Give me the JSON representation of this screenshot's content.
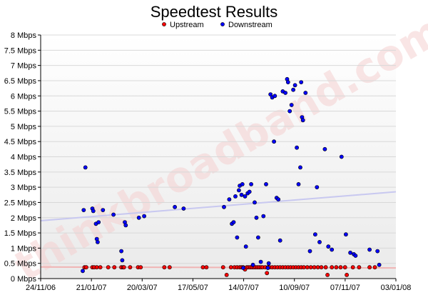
{
  "chart_data": {
    "type": "scatter",
    "title": "Speedtest Results",
    "xlabel": "",
    "ylabel": "",
    "watermark": "thinkbroadband.com",
    "legend_position": "top-center",
    "grid": true,
    "x_ticks": [
      "24/11/06",
      "21/01/07",
      "20/03/07",
      "17/05/07",
      "14/07/07",
      "10/09/07",
      "07/11/07",
      "03/01/08"
    ],
    "x_range": [
      "2006-11-24",
      "2008-01-03"
    ],
    "y_ticks": [
      "0 Mbps",
      "0.5 Mbps",
      "1 Mbps",
      "1.5 Mbps",
      "2 Mbps",
      "2.5 Mbps",
      "3 Mbps",
      "3.5 Mbps",
      "4 Mbps",
      "4.5 Mbps",
      "5 Mbps",
      "5.5 Mbps",
      "6 Mbps",
      "6.5 Mbps",
      "7 Mbps",
      "7.5 Mbps",
      "8 Mbps"
    ],
    "ylim": [
      0,
      8
    ],
    "trend_lines": [
      {
        "series": "Downstream",
        "color": "#c8c8f0",
        "start": [
          "2006-11-24",
          1.9
        ],
        "end": [
          "2008-01-03",
          2.85
        ]
      },
      {
        "series": "Upstream",
        "color": "#f0b4b4",
        "start": [
          "2006-11-24",
          0.38
        ],
        "end": [
          "2008-01-03",
          0.35
        ]
      }
    ],
    "series": [
      {
        "name": "Upstream",
        "color": "#ff0000",
        "points": [
          [
            "2007-01-13",
            0.37
          ],
          [
            "2007-01-15",
            0.37
          ],
          [
            "2007-01-22",
            0.37
          ],
          [
            "2007-01-24",
            0.37
          ],
          [
            "2007-01-27",
            0.37
          ],
          [
            "2007-01-31",
            0.37
          ],
          [
            "2007-02-09",
            0.37
          ],
          [
            "2007-02-16",
            0.37
          ],
          [
            "2007-02-24",
            0.37
          ],
          [
            "2007-02-26",
            0.37
          ],
          [
            "2007-02-27",
            0.37
          ],
          [
            "2007-03-06",
            0.37
          ],
          [
            "2007-03-15",
            0.37
          ],
          [
            "2007-03-18",
            0.37
          ],
          [
            "2007-04-14",
            0.37
          ],
          [
            "2007-04-20",
            0.37
          ],
          [
            "2007-05-28",
            0.37
          ],
          [
            "2007-06-01",
            0.37
          ],
          [
            "2007-06-20",
            0.37
          ],
          [
            "2007-06-24",
            0.12
          ],
          [
            "2007-06-29",
            0.37
          ],
          [
            "2007-07-03",
            0.37
          ],
          [
            "2007-07-06",
            0.37
          ],
          [
            "2007-07-09",
            0.37
          ],
          [
            "2007-07-11",
            0.37
          ],
          [
            "2007-07-13",
            0.37
          ],
          [
            "2007-07-15",
            0.3
          ],
          [
            "2007-07-17",
            0.37
          ],
          [
            "2007-07-19",
            0.37
          ],
          [
            "2007-07-21",
            0.37
          ],
          [
            "2007-07-23",
            0.37
          ],
          [
            "2007-07-25",
            0.37
          ],
          [
            "2007-07-27",
            0.37
          ],
          [
            "2007-07-29",
            0.37
          ],
          [
            "2007-07-31",
            0.37
          ],
          [
            "2007-08-02",
            0.37
          ],
          [
            "2007-08-04",
            0.37
          ],
          [
            "2007-08-07",
            0.37
          ],
          [
            "2007-08-09",
            0.18
          ],
          [
            "2007-08-10",
            0.37
          ],
          [
            "2007-08-12",
            0.37
          ],
          [
            "2007-08-15",
            0.37
          ],
          [
            "2007-08-18",
            0.37
          ],
          [
            "2007-08-21",
            0.37
          ],
          [
            "2007-08-24",
            0.37
          ],
          [
            "2007-08-27",
            0.37
          ],
          [
            "2007-08-30",
            0.37
          ],
          [
            "2007-09-02",
            0.37
          ],
          [
            "2007-09-05",
            0.37
          ],
          [
            "2007-09-08",
            0.37
          ],
          [
            "2007-09-11",
            0.37
          ],
          [
            "2007-09-14",
            0.37
          ],
          [
            "2007-09-17",
            0.37
          ],
          [
            "2007-09-20",
            0.37
          ],
          [
            "2007-09-24",
            0.37
          ],
          [
            "2007-09-28",
            0.37
          ],
          [
            "2007-10-02",
            0.37
          ],
          [
            "2007-10-06",
            0.37
          ],
          [
            "2007-10-10",
            0.37
          ],
          [
            "2007-10-15",
            0.37
          ],
          [
            "2007-10-17",
            0.12
          ],
          [
            "2007-10-22",
            0.37
          ],
          [
            "2007-10-27",
            0.37
          ],
          [
            "2007-11-01",
            0.37
          ],
          [
            "2007-11-06",
            0.37
          ],
          [
            "2007-11-08",
            0.12
          ],
          [
            "2007-11-15",
            0.37
          ],
          [
            "2007-11-22",
            0.37
          ],
          [
            "2007-12-04",
            0.37
          ],
          [
            "2007-12-10",
            0.37
          ]
        ]
      },
      {
        "name": "Downstream",
        "color": "#0000ff",
        "points": [
          [
            "2007-01-11",
            0.25
          ],
          [
            "2007-01-12",
            2.25
          ],
          [
            "2007-01-14",
            3.65
          ],
          [
            "2007-01-22",
            2.3
          ],
          [
            "2007-01-23",
            2.22
          ],
          [
            "2007-01-26",
            1.8
          ],
          [
            "2007-01-27",
            1.3
          ],
          [
            "2007-01-28",
            1.2
          ],
          [
            "2007-01-29",
            1.85
          ],
          [
            "2007-02-03",
            2.25
          ],
          [
            "2007-02-15",
            2.1
          ],
          [
            "2007-02-24",
            0.9
          ],
          [
            "2007-02-25",
            0.6
          ],
          [
            "2007-02-28",
            1.85
          ],
          [
            "2007-03-01",
            1.75
          ],
          [
            "2007-03-16",
            2.0
          ],
          [
            "2007-03-22",
            2.05
          ],
          [
            "2007-04-26",
            2.35
          ],
          [
            "2007-05-06",
            2.3
          ],
          [
            "2007-06-21",
            2.35
          ],
          [
            "2007-06-27",
            2.6
          ],
          [
            "2007-06-30",
            1.8
          ],
          [
            "2007-07-02",
            1.85
          ],
          [
            "2007-07-04",
            2.7
          ],
          [
            "2007-07-06",
            1.35
          ],
          [
            "2007-07-08",
            2.9
          ],
          [
            "2007-07-09",
            3.05
          ],
          [
            "2007-07-11",
            2.75
          ],
          [
            "2007-07-12",
            3.1
          ],
          [
            "2007-07-13",
            0.35
          ],
          [
            "2007-07-15",
            2.7
          ],
          [
            "2007-07-16",
            1.05
          ],
          [
            "2007-07-18",
            2.8
          ],
          [
            "2007-07-20",
            2.85
          ],
          [
            "2007-07-22",
            3.1
          ],
          [
            "2007-07-24",
            0.45
          ],
          [
            "2007-07-26",
            2.5
          ],
          [
            "2007-07-28",
            2.0
          ],
          [
            "2007-07-30",
            1.35
          ],
          [
            "2007-08-02",
            0.55
          ],
          [
            "2007-08-05",
            2.05
          ],
          [
            "2007-08-08",
            3.1
          ],
          [
            "2007-08-10",
            0.35
          ],
          [
            "2007-08-11",
            0.5
          ],
          [
            "2007-08-13",
            6.05
          ],
          [
            "2007-08-15",
            5.95
          ],
          [
            "2007-08-17",
            4.5
          ],
          [
            "2007-08-18",
            6.0
          ],
          [
            "2007-08-20",
            2.65
          ],
          [
            "2007-08-22",
            2.6
          ],
          [
            "2007-08-24",
            1.25
          ],
          [
            "2007-08-27",
            6.15
          ],
          [
            "2007-08-30",
            6.1
          ],
          [
            "2007-09-01",
            6.55
          ],
          [
            "2007-09-02",
            6.45
          ],
          [
            "2007-09-04",
            5.5
          ],
          [
            "2007-09-06",
            5.7
          ],
          [
            "2007-09-08",
            6.2
          ],
          [
            "2007-09-10",
            6.35
          ],
          [
            "2007-09-12",
            4.3
          ],
          [
            "2007-09-14",
            3.1
          ],
          [
            "2007-09-16",
            3.65
          ],
          [
            "2007-09-17",
            6.45
          ],
          [
            "2007-09-18",
            5.3
          ],
          [
            "2007-09-19",
            5.2
          ],
          [
            "2007-09-22",
            6.1
          ],
          [
            "2007-09-27",
            0.9
          ],
          [
            "2007-10-03",
            1.45
          ],
          [
            "2007-10-05",
            3.0
          ],
          [
            "2007-10-08",
            1.2
          ],
          [
            "2007-10-14",
            4.25
          ],
          [
            "2007-10-18",
            1.05
          ],
          [
            "2007-10-22",
            0.95
          ],
          [
            "2007-11-02",
            4.0
          ],
          [
            "2007-11-07",
            1.45
          ],
          [
            "2007-11-12",
            0.85
          ],
          [
            "2007-11-16",
            0.8
          ],
          [
            "2007-11-18",
            0.75
          ],
          [
            "2007-12-04",
            0.95
          ],
          [
            "2007-12-13",
            0.9
          ],
          [
            "2007-12-15",
            0.45
          ]
        ]
      }
    ]
  }
}
